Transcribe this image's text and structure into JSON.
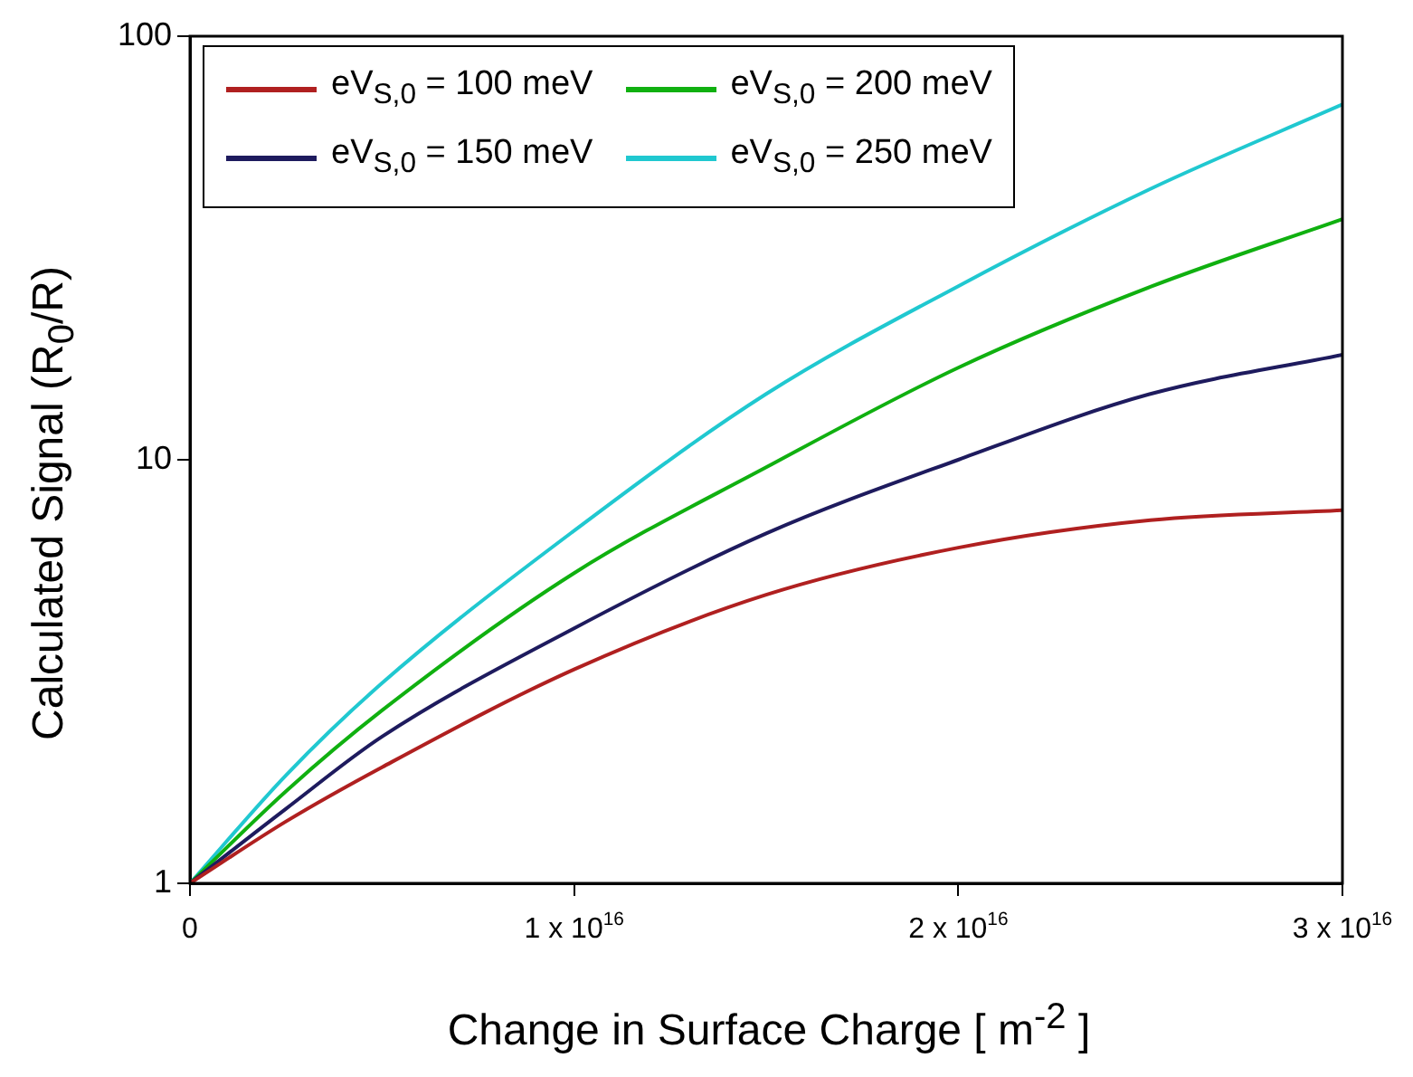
{
  "chart_data": {
    "type": "line",
    "xlabel": "Change in Surface Charge [ m$^{-2}$ ]",
    "ylabel": "Calculated Signal (R$_{0}$/R)",
    "x": [
      0,
      2500000000000000,
      5000000000000000,
      10000000000000000,
      15000000000000000,
      20000000000000000,
      25000000000000000,
      30000000000000000
    ],
    "series": [
      {
        "name": "eV$_{S,0}$ = 100 meV",
        "color": "#b02020",
        "values": [
          1,
          1.4,
          1.88,
          3.2,
          4.8,
          6.2,
          7.2,
          7.6
        ]
      },
      {
        "name": "eV$_{S,0}$ = 150 meV",
        "color": "#1e1b5e",
        "values": [
          1,
          1.5,
          2.22,
          4.0,
          6.7,
          10,
          14.3,
          17.7
        ]
      },
      {
        "name": "eV$_{S,0}$ = 200 meV",
        "color": "#10b010",
        "values": [
          1,
          1.65,
          2.56,
          5.4,
          9.6,
          16.5,
          25.6,
          37
        ]
      },
      {
        "name": "eV$_{S,0}$ = 250 meV",
        "color": "#20c8d0",
        "values": [
          1,
          1.8,
          2.97,
          6.8,
          14.3,
          25.7,
          43.6,
          69
        ]
      }
    ],
    "xlim": [
      0,
      30000000000000000
    ],
    "xticks": [
      0,
      {
        "value": 10000000000000000,
        "label": "1 x 10$^{16}$"
      },
      {
        "value": 20000000000000000,
        "label": "2 x 10$^{16}$"
      },
      {
        "value": 30000000000000000,
        "label": "3 x 10$^{16}$"
      }
    ],
    "ylim": [
      1,
      100
    ],
    "yticks": [
      1,
      10,
      100
    ],
    "log": "y",
    "legend": "top left",
    "marker": "none",
    "line_style": "solid"
  }
}
